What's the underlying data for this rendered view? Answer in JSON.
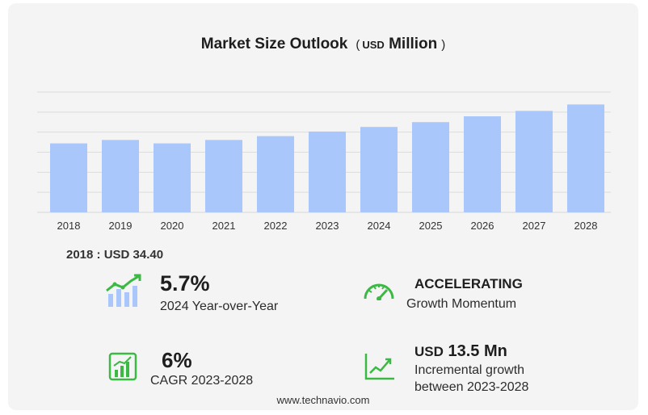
{
  "header": {
    "title": "Market Size Outlook",
    "unit_open": "(",
    "unit_currency": "USD",
    "unit_scale": "Million",
    "unit_close": ")"
  },
  "base_year": {
    "label": "2018 : USD  34.40"
  },
  "stats": {
    "yoy": {
      "value": "5.7%",
      "label": "2024 Year-over-Year"
    },
    "momentum": {
      "value": "ACCELERATING",
      "label": "Growth Momentum"
    },
    "cagr": {
      "value": "6%",
      "label": "CAGR 2023-2028"
    },
    "incremental": {
      "currency": "USD",
      "value": "13.5 Mn",
      "label_line1": "Incremental growth",
      "label_line2": "between 2023-2028"
    }
  },
  "footer": {
    "site": "www.technavio.com"
  },
  "colors": {
    "bar": "#a9c7fb",
    "icon_green": "#3cb944",
    "icon_blue": "#a9c7fb",
    "grid": "#dcdcdc"
  },
  "icons": {
    "yoy": "bar-trend-icon",
    "momentum": "speedometer-icon",
    "cagr": "bar-growth-icon",
    "incremental": "line-growth-icon"
  },
  "chart_data": {
    "type": "bar",
    "title": "Market Size Outlook",
    "ylabel": "",
    "xlabel": "",
    "categories": [
      "2018",
      "2019",
      "2020",
      "2021",
      "2022",
      "2023",
      "2024",
      "2025",
      "2026",
      "2027",
      "2028"
    ],
    "values": [
      34.4,
      36.1,
      34.4,
      36.1,
      38.0,
      40.3,
      42.6,
      45.0,
      47.9,
      50.6,
      53.8
    ],
    "ylim": [
      0,
      60
    ],
    "grid": true,
    "legend": "none"
  }
}
